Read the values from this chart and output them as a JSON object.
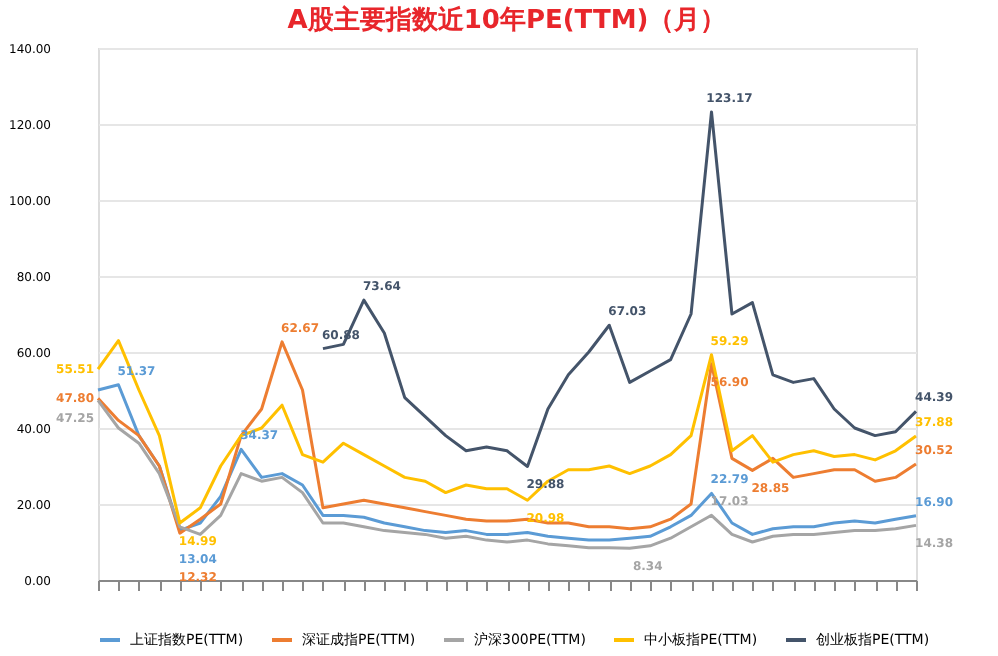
{
  "chart_data": {
    "type": "line",
    "title": "A股主要指数近10年PE(TTM)（月）",
    "categories": [
      null,
      null,
      null,
      null,
      null,
      null,
      null,
      null,
      null,
      null,
      null,
      null,
      null,
      null,
      null,
      null,
      null,
      null,
      null,
      null,
      null,
      null,
      null,
      null,
      null,
      null,
      null,
      null,
      null,
      null,
      null,
      null,
      null,
      null,
      null,
      null,
      null,
      null,
      null,
      null,
      null
    ],
    "series": [
      {
        "name": "上证指数PE(TTM)",
        "color": "#5b9bd5",
        "values": [
          50,
          51.37,
          38,
          30,
          13.04,
          15,
          22,
          34.37,
          27,
          28,
          25,
          17,
          17,
          16.5,
          15,
          14,
          13,
          12.5,
          13,
          12,
          12,
          12.5,
          11.5,
          11,
          10.5,
          10.5,
          11,
          11.5,
          14,
          17,
          22.79,
          15,
          12,
          13.5,
          14,
          14,
          15,
          15.5,
          15,
          16,
          16.9
        ],
        "value_labels": [
          null,
          "51.37",
          null,
          null,
          "13.04",
          null,
          null,
          "34.37",
          null,
          null,
          null,
          null,
          null,
          null,
          null,
          null,
          null,
          null,
          null,
          null,
          null,
          null,
          null,
          null,
          null,
          null,
          null,
          null,
          null,
          null,
          "22.79",
          null,
          null,
          null,
          null,
          null,
          null,
          null,
          null,
          null,
          "16.90"
        ]
      },
      {
        "name": "深证成指PE(TTM)",
        "color": "#ed7d31",
        "values": [
          47.8,
          42,
          38,
          30,
          12.32,
          16,
          20,
          38,
          45,
          62.67,
          50,
          19,
          20,
          21,
          20,
          19,
          18,
          17,
          16,
          15.5,
          15.5,
          16,
          15,
          15,
          14,
          14,
          13.5,
          14,
          16,
          20,
          56.9,
          32,
          28.85,
          32,
          27,
          28,
          29,
          29,
          26,
          27,
          30.52
        ],
        "value_labels": [
          "47.80",
          null,
          null,
          null,
          "12.32",
          null,
          null,
          null,
          null,
          "62.67",
          null,
          null,
          null,
          null,
          null,
          null,
          null,
          null,
          null,
          null,
          null,
          null,
          null,
          null,
          null,
          null,
          null,
          null,
          null,
          null,
          "56.90",
          null,
          "28.85",
          null,
          null,
          null,
          null,
          null,
          null,
          null,
          "30.52"
        ]
      },
      {
        "name": "沪深300PE(TTM)",
        "color": "#a5a5a5",
        "values": [
          47.25,
          40,
          36,
          28,
          14,
          12,
          17,
          28,
          26,
          27,
          23,
          15,
          15,
          14,
          13,
          12.5,
          12,
          11,
          11.5,
          10.5,
          10,
          10.5,
          9.5,
          9,
          8.5,
          8.5,
          8.34,
          9,
          11,
          14,
          17.03,
          12,
          10,
          11.5,
          12,
          12,
          12.5,
          13,
          13,
          13.5,
          14.38
        ],
        "value_labels": [
          "47.25",
          null,
          null,
          null,
          null,
          null,
          null,
          null,
          null,
          null,
          null,
          null,
          null,
          null,
          null,
          null,
          null,
          null,
          null,
          null,
          null,
          null,
          null,
          null,
          null,
          null,
          "8.34",
          null,
          null,
          null,
          "17.03",
          null,
          null,
          null,
          null,
          null,
          null,
          null,
          null,
          null,
          "14.38"
        ]
      },
      {
        "name": "中小板指PE(TTM)",
        "color": "#ffc000",
        "values": [
          55.51,
          63,
          50,
          38,
          14.99,
          19,
          30,
          38,
          40,
          46,
          33,
          31,
          36,
          33,
          30,
          27,
          26,
          23,
          25,
          24,
          24,
          20.98,
          26,
          29,
          29,
          30,
          28,
          30,
          33,
          38,
          59.29,
          34,
          38,
          31,
          33,
          34,
          32.5,
          33,
          31.6,
          34,
          37.88
        ],
        "value_labels": [
          "55.51",
          null,
          null,
          null,
          "14.99",
          null,
          null,
          null,
          null,
          null,
          null,
          null,
          null,
          null,
          null,
          null,
          null,
          null,
          null,
          null,
          null,
          "20.98",
          null,
          null,
          null,
          null,
          null,
          null,
          null,
          null,
          "59.29",
          null,
          null,
          null,
          null,
          null,
          null,
          null,
          null,
          null,
          "37.88"
        ]
      },
      {
        "name": "创业板指PE(TTM)",
        "color": "#44546a",
        "values": [
          null,
          null,
          null,
          null,
          null,
          null,
          null,
          null,
          null,
          null,
          null,
          60.88,
          62,
          73.64,
          65,
          48,
          43,
          38,
          34,
          35,
          34,
          29.88,
          45,
          54,
          60,
          67.03,
          52,
          55,
          58,
          70,
          123.17,
          70,
          73,
          54,
          52,
          53,
          45,
          40,
          38,
          39,
          44.39
        ],
        "value_labels": [
          null,
          null,
          null,
          null,
          null,
          null,
          null,
          null,
          null,
          null,
          null,
          "60.88",
          null,
          "73.64",
          null,
          null,
          null,
          null,
          null,
          null,
          null,
          "29.88",
          null,
          null,
          null,
          "67.03",
          null,
          null,
          null,
          null,
          "123.17",
          null,
          null,
          null,
          null,
          null,
          null,
          null,
          null,
          null,
          "44.39"
        ]
      }
    ],
    "ylim": [
      0,
      140
    ],
    "yticks": [
      {
        "value": 0,
        "label": "0.00"
      },
      {
        "value": 20,
        "label": "20.00"
      },
      {
        "value": 40,
        "label": "40.00"
      },
      {
        "value": 60,
        "label": "60.00"
      },
      {
        "value": 80,
        "label": "80.00"
      },
      {
        "value": 100,
        "label": "100.00"
      },
      {
        "value": 120,
        "label": "120.00"
      },
      {
        "value": 140,
        "label": "140.00"
      }
    ],
    "grid": "y",
    "legend": "bottom"
  }
}
